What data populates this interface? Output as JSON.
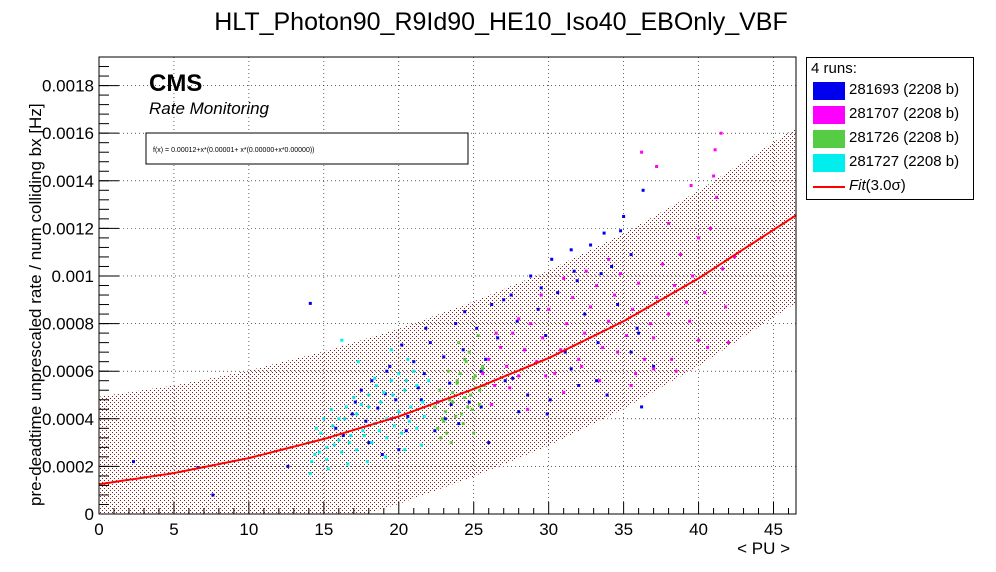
{
  "chart_data": {
    "type": "scatter",
    "title": "HLT_Photon90_R9Id90_HE10_Iso40_EBOnly_VBF",
    "xlabel": "< PU >",
    "ylabel": "pre-deadtime unprescaled rate / num colliding bx [Hz]",
    "xlim": [
      0,
      46.5
    ],
    "ylim": [
      0,
      0.00192
    ],
    "x_ticks": [
      "0",
      "5",
      "10",
      "15",
      "20",
      "25",
      "30",
      "35",
      "40",
      "45"
    ],
    "y_ticks": [
      "0",
      "0.0002",
      "0.0004",
      "0.0006",
      "0.0008",
      "0.001",
      "0.0012",
      "0.0014",
      "0.0016",
      "0.0018"
    ],
    "grid": true,
    "cms_label": "CMS",
    "cms_sublabel": "Rate Monitoring",
    "fit_formula": "f(x) = 0.00012+x*(0.00001+ x*(0.00000+x*0.00000))",
    "fit": {
      "name": "Fit(3.0σ)",
      "label_prefix": "Fit",
      "label_suffix": "(3.0σ)",
      "color": "#ff0000",
      "band_color": "#8b1a1a",
      "points": [
        [
          0,
          0.000125
        ],
        [
          5,
          0.000172
        ],
        [
          10,
          0.000235
        ],
        [
          15,
          0.000315
        ],
        [
          20,
          0.00041
        ],
        [
          25,
          0.000525
        ],
        [
          30,
          0.000655
        ],
        [
          35,
          0.00081
        ],
        [
          40,
          0.00099
        ],
        [
          46.5,
          0.001255
        ]
      ],
      "band_halfwidth": 0.000368
    },
    "legend": {
      "header": "4 runs:",
      "position": "right"
    },
    "series": [
      {
        "name": "281693 (2208 b)",
        "color": "#0000ee",
        "x": [
          2.3,
          6.6,
          7.6,
          12.6,
          14.1,
          16.3,
          17.1,
          17.8,
          18.2,
          18.6,
          19.1,
          19.4,
          19.8,
          20.2,
          20.6,
          21.0,
          21.3,
          21.7,
          22.1,
          22.6,
          23.0,
          23.4,
          23.8,
          24.3,
          24.7,
          25.2,
          25.8,
          26.2,
          26.6,
          27.1,
          27.5,
          27.9,
          28.4,
          28.8,
          29.3,
          29.8,
          30.2,
          30.6,
          31.1,
          31.5,
          31.9,
          32.4,
          32.8,
          33.3,
          33.7,
          34.2,
          34.6,
          35.0,
          35.5,
          35.9,
          36.3,
          15.8,
          16.9,
          18.0,
          19.2,
          20.5,
          21.8,
          23.1,
          24.4,
          25.5,
          27.0,
          28.6,
          30.1,
          31.7,
          33.2,
          34.8,
          36.2,
          17.5,
          19.5,
          21.5,
          23.5,
          25.5,
          27.6,
          29.5,
          31.5,
          33.5,
          35.5,
          18.9,
          22.4,
          26.0,
          29.9,
          33.9,
          37.0,
          20.0,
          24.0,
          28.0,
          32.0,
          36.0
        ],
        "y": [
          0.00022,
          0.000195,
          8e-05,
          0.0002,
          0.000885,
          0.00033,
          0.00047,
          0.00039,
          0.00056,
          0.000445,
          0.000505,
          0.00062,
          0.00048,
          0.00071,
          0.00041,
          0.00064,
          0.00053,
          0.00059,
          0.00072,
          0.00047,
          0.00066,
          0.00055,
          0.0008,
          0.00069,
          0.00047,
          0.00078,
          0.00065,
          0.00088,
          0.00074,
          0.00056,
          0.00092,
          0.00081,
          0.00069,
          0.001,
          0.00086,
          0.00075,
          0.00107,
          0.00093,
          0.00068,
          0.00111,
          0.00098,
          0.00084,
          0.00113,
          0.00072,
          0.00118,
          0.00104,
          0.00088,
          0.00125,
          0.00109,
          0.00078,
          0.00136,
          0.00036,
          0.00042,
          0.0003,
          0.0006,
          0.00035,
          0.00078,
          0.0004,
          0.00085,
          0.00045,
          0.0009,
          0.0005,
          0.00048,
          0.00102,
          0.00056,
          0.00119,
          0.00045,
          0.00052,
          0.0004,
          0.00048,
          0.00046,
          0.0006,
          0.00057,
          0.00095,
          0.00061,
          0.00101,
          0.00068,
          0.00025,
          0.00035,
          0.0003,
          0.00042,
          0.0005,
          0.00062,
          0.00027,
          0.00038,
          0.00043,
          0.00054,
          0.00076
        ]
      },
      {
        "name": "281707 (2208 b)",
        "color": "#ff00ff",
        "x": [
          25.6,
          26.0,
          26.4,
          26.8,
          27.2,
          27.6,
          28.0,
          28.4,
          28.8,
          29.2,
          29.6,
          30.0,
          30.4,
          30.8,
          31.2,
          31.6,
          32.0,
          32.4,
          32.8,
          33.2,
          33.6,
          34.0,
          34.4,
          34.8,
          35.2,
          35.6,
          36.0,
          36.4,
          36.8,
          37.2,
          37.6,
          38.0,
          38.4,
          38.8,
          39.2,
          39.6,
          40.0,
          40.4,
          40.8,
          41.2,
          41.6,
          42.0,
          42.4,
          26.2,
          27.4,
          28.6,
          29.8,
          31.0,
          32.2,
          33.4,
          34.6,
          35.8,
          37.0,
          38.2,
          39.4,
          40.6,
          41.8,
          26.5,
          28.0,
          29.5,
          31.0,
          32.5,
          34.0,
          35.5,
          37.0,
          38.5,
          40.0,
          41.0,
          37.2,
          38.0,
          39.5,
          41.1,
          41.5,
          36.2
        ],
        "y": [
          0.00059,
          0.00065,
          0.00054,
          0.0007,
          0.00062,
          0.00076,
          0.00058,
          0.00069,
          0.0008,
          0.00064,
          0.00074,
          0.00086,
          0.00059,
          0.00069,
          0.0008,
          0.00091,
          0.00065,
          0.00076,
          0.00087,
          0.00096,
          0.0007,
          0.00081,
          0.00092,
          0.00101,
          0.00075,
          0.00086,
          0.00097,
          0.00065,
          0.0008,
          0.00091,
          0.00105,
          0.00084,
          0.00096,
          0.00109,
          0.00089,
          0.001,
          0.00116,
          0.00093,
          0.0012,
          0.00133,
          0.00103,
          0.00072,
          0.00108,
          0.00046,
          0.00053,
          0.00044,
          0.00058,
          0.00051,
          0.00062,
          0.00056,
          0.00068,
          0.00059,
          0.00074,
          0.00065,
          0.00081,
          0.0007,
          0.00087,
          0.00076,
          0.00082,
          0.00092,
          0.00099,
          0.00102,
          0.00107,
          0.00054,
          0.00061,
          0.0006,
          0.00073,
          0.00142,
          0.00146,
          0.00122,
          0.00138,
          0.00153,
          0.0016,
          0.00152
        ]
      },
      {
        "name": "281726 (2208 b)",
        "color": "#55cc44",
        "x": [
          22.4,
          22.7,
          23.0,
          23.3,
          23.6,
          23.9,
          24.2,
          24.5,
          24.8,
          25.1,
          25.4,
          25.7,
          22.6,
          23.1,
          23.6,
          24.1,
          24.6,
          25.1,
          25.6,
          22.9,
          23.4,
          23.9,
          24.4,
          24.9,
          25.4,
          23.2,
          23.8,
          24.4,
          25.0,
          25.6,
          24.0,
          24.7,
          25.3,
          22.8,
          23.5,
          24.3,
          25.0
        ],
        "y": [
          0.00045,
          0.00052,
          0.00039,
          0.0006,
          0.00047,
          0.00055,
          0.00042,
          0.00064,
          0.0005,
          0.00058,
          0.00046,
          0.00054,
          0.00036,
          0.00043,
          0.00051,
          0.00059,
          0.00045,
          0.00053,
          0.00061,
          0.0004,
          0.00048,
          0.00056,
          0.00065,
          0.00044,
          0.00052,
          0.00034,
          0.00041,
          0.00049,
          0.00057,
          0.00062,
          0.00072,
          0.00068,
          0.00075,
          0.00032,
          0.0003,
          0.00038,
          0.00034
        ]
      },
      {
        "name": "281727 (2208 b)",
        "color": "#00eeee",
        "x": [
          14.0,
          14.4,
          14.8,
          15.2,
          15.6,
          16.0,
          16.4,
          16.8,
          17.2,
          17.6,
          18.0,
          18.4,
          18.8,
          19.2,
          19.6,
          20.0,
          20.4,
          20.8,
          21.2,
          21.6,
          22.0,
          14.2,
          14.7,
          15.2,
          15.7,
          16.2,
          16.7,
          17.2,
          17.7,
          18.2,
          18.7,
          19.2,
          19.7,
          20.2,
          20.7,
          21.2,
          21.7,
          14.5,
          15.0,
          15.5,
          16.0,
          16.5,
          17.0,
          17.5,
          18.0,
          18.5,
          19.0,
          19.5,
          20.0,
          20.5,
          21.0,
          14.1,
          15.3,
          16.6,
          17.9,
          19.1,
          20.4,
          21.5,
          16.2,
          17.3,
          18.4,
          19.5,
          20.6
        ],
        "y": [
          0.0003,
          0.00025,
          0.00034,
          0.00028,
          0.00037,
          0.00031,
          0.0004,
          0.00033,
          0.00042,
          0.00035,
          0.00045,
          0.00038,
          0.00047,
          0.0004,
          0.0005,
          0.00043,
          0.00052,
          0.00045,
          0.00054,
          0.00047,
          0.00056,
          0.00022,
          0.00026,
          0.00023,
          0.00029,
          0.00026,
          0.0003,
          0.00027,
          0.00033,
          0.0003,
          0.00035,
          0.00032,
          0.00037,
          0.00034,
          0.00039,
          0.00036,
          0.00041,
          0.00036,
          0.0004,
          0.00044,
          0.0004,
          0.00045,
          0.00049,
          0.00046,
          0.0005,
          0.00054,
          0.00051,
          0.00056,
          0.00059,
          0.00056,
          0.0006,
          0.00017,
          0.00019,
          0.00021,
          0.00022,
          0.00024,
          0.00027,
          0.00029,
          0.00073,
          0.00064,
          0.00057,
          0.00069,
          0.00065
        ]
      }
    ]
  }
}
